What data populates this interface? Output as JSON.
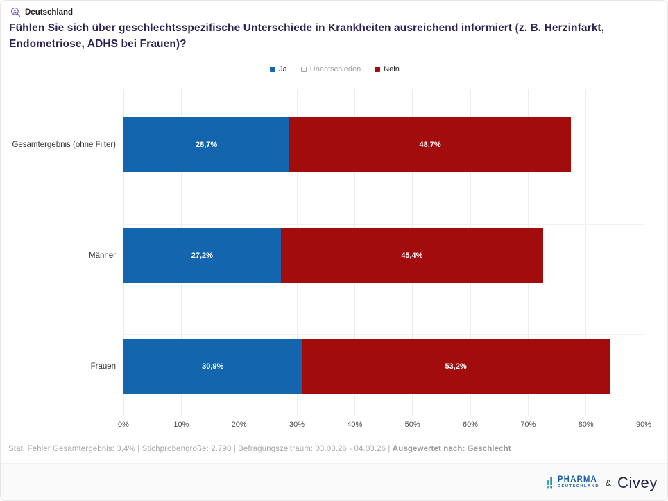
{
  "header": {
    "location": "Deutschland",
    "title": "Fühlen Sie sich über geschlechtsspezifische Unterschiede in Krankheiten ausreichend informiert (z. B. Herzinfarkt, Endometriose, ADHS bei Frauen)?"
  },
  "chart_data": {
    "type": "bar",
    "orientation": "horizontal",
    "stacked": true,
    "title": "Fühlen Sie sich über geschlechtsspezifische Unterschiede in Krankheiten ausreichend informiert (z. B. Herzinfarkt, Endometriose, ADHS bei Frauen)?",
    "categories": [
      "Gesamtergebnis (ohne Filter)",
      "Männer",
      "Frauen"
    ],
    "series": [
      {
        "name": "Ja",
        "color": "#1366ad",
        "values": [
          28.7,
          27.2,
          30.9
        ],
        "value_labels": [
          "28,7%",
          "27,2%",
          "30,9%"
        ]
      },
      {
        "name": "Nein",
        "color": "#a30c0c",
        "values": [
          48.7,
          45.4,
          53.2
        ],
        "value_labels": [
          "48,7%",
          "45,4%",
          "53,2%"
        ]
      }
    ],
    "legend": [
      {
        "label": "Ja",
        "swatch_color": "#1366ad",
        "swatch_border": "#1366ad",
        "text_color": "#222222"
      },
      {
        "label": "Unentschieden",
        "swatch_color": "#ffffff",
        "swatch_border": "#9e9e9e",
        "text_color": "#9e9e9e"
      },
      {
        "label": "Nein",
        "swatch_color": "#a30c0c",
        "swatch_border": "#a30c0c",
        "text_color": "#222222"
      }
    ],
    "xlim": [
      0,
      90
    ],
    "x_ticks": [
      "0%",
      "10%",
      "20%",
      "30%",
      "40%",
      "50%",
      "60%",
      "70%",
      "80%",
      "90%"
    ],
    "grid": "vertical",
    "legend_position": "top-center"
  },
  "footer": {
    "plain": "Stat. Fehler Gesamtergebnis: 3,4% | Stichprobengröße: 2.790 | Befragungszeitraum: 03.03.26 - 04.03.26 | ",
    "bold": "Ausgewertet nach: Geschlecht"
  },
  "branding": {
    "pharma_line1": "PHARMA",
    "pharma_line2": "DEUTSCHLAND",
    "ampersand": "&",
    "civey": "Civey"
  },
  "colors": {
    "ja": "#1366ad",
    "nein": "#a30c0c",
    "title": "#2c2254",
    "icon_purple": "#8a63b8",
    "gridline": "#ececec"
  }
}
